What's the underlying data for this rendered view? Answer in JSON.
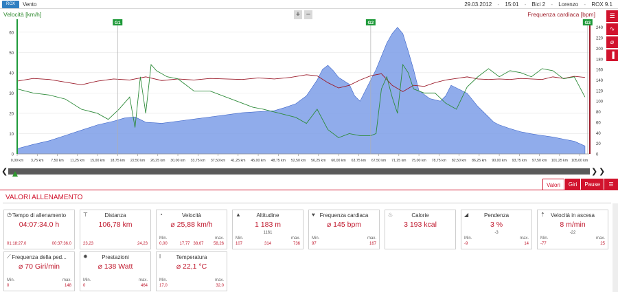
{
  "app": {
    "title": "Vento",
    "logo": "ROX",
    "date": "29.03.2012",
    "time": "15:01",
    "bike": "Bici 2",
    "user": "Lorenzo",
    "device": "ROX 9.1"
  },
  "chart": {
    "left_axis_title": "Velocità [km/h]",
    "right_axis_title": "Frequenza cardiaca [bpm]",
    "zoom_in": "+",
    "zoom_out": "−",
    "markers": [
      "G1",
      "G2",
      "G3"
    ],
    "colors": {
      "speed": "#2e8b3a",
      "heart": "#9b1b2a",
      "altitude_fill": "#7d9ee8",
      "altitude_line": "#3c64c8",
      "marker": "#1f9a3a"
    }
  },
  "chart_data": {
    "type": "line",
    "x_unit": "km",
    "x_ticks": [
      "0,00 km",
      "3,75 km",
      "7,50 km",
      "11,25 km",
      "15,00 km",
      "18,75 km",
      "22,50 km",
      "26,25 km",
      "30,00 km",
      "33,75 km",
      "37,50 km",
      "41,25 km",
      "45,00 km",
      "48,75 km",
      "52,50 km",
      "56,25 km",
      "60,00 km",
      "63,75 km",
      "67,50 km",
      "71,25 km",
      "75,00 km",
      "78,75 km",
      "82,50 km",
      "86,25 km",
      "90,00 km",
      "93,75 km",
      "97,50 km",
      "101,25 km",
      "105,00 km"
    ],
    "left_ticks": [
      "0",
      "10",
      "20",
      "30",
      "40",
      "50",
      "60"
    ],
    "right_ticks": [
      "0",
      "20",
      "40",
      "60",
      "80",
      "100",
      "120",
      "140",
      "160",
      "180",
      "200",
      "220",
      "240"
    ],
    "left_range": [
      0,
      65
    ],
    "right_range": [
      0,
      250
    ],
    "x_range": [
      0,
      106.78
    ],
    "marker_positions_km": [
      18.75,
      66.0,
      106.5
    ],
    "series": [
      {
        "name": "Velocità [km/h]",
        "axis": "left",
        "points": [
          [
            0,
            32
          ],
          [
            3,
            30
          ],
          [
            6,
            29
          ],
          [
            9,
            27
          ],
          [
            12,
            22
          ],
          [
            15,
            20
          ],
          [
            17,
            17
          ],
          [
            19,
            22
          ],
          [
            21,
            28
          ],
          [
            22,
            13
          ],
          [
            23,
            38
          ],
          [
            24,
            20
          ],
          [
            25,
            44
          ],
          [
            26,
            41
          ],
          [
            28,
            38
          ],
          [
            30,
            37
          ],
          [
            33,
            31
          ],
          [
            36,
            31
          ],
          [
            39,
            28
          ],
          [
            41,
            26
          ],
          [
            44,
            23
          ],
          [
            46,
            22
          ],
          [
            49,
            20
          ],
          [
            52,
            18
          ],
          [
            54,
            15
          ],
          [
            56,
            22
          ],
          [
            58,
            12
          ],
          [
            60,
            8
          ],
          [
            62,
            10
          ],
          [
            64,
            9
          ],
          [
            66,
            9
          ],
          [
            67,
            10
          ],
          [
            68,
            32
          ],
          [
            69,
            38
          ],
          [
            70,
            28
          ],
          [
            71,
            20
          ],
          [
            72,
            44
          ],
          [
            73,
            40
          ],
          [
            74,
            32
          ],
          [
            76,
            30
          ],
          [
            78,
            30
          ],
          [
            80,
            25
          ],
          [
            82,
            22
          ],
          [
            84,
            33
          ],
          [
            86,
            38
          ],
          [
            88,
            42
          ],
          [
            90,
            38
          ],
          [
            92,
            41
          ],
          [
            94,
            40
          ],
          [
            96,
            38
          ],
          [
            98,
            42
          ],
          [
            100,
            41
          ],
          [
            102,
            37
          ],
          [
            104,
            38
          ],
          [
            106,
            28
          ]
        ]
      },
      {
        "name": "Frequenza cardiaca [bpm]",
        "axis": "right",
        "points": [
          [
            0,
            138
          ],
          [
            3,
            143
          ],
          [
            6,
            141
          ],
          [
            9,
            136
          ],
          [
            12,
            131
          ],
          [
            15,
            138
          ],
          [
            18,
            142
          ],
          [
            21,
            140
          ],
          [
            24,
            146
          ],
          [
            27,
            139
          ],
          [
            30,
            142
          ],
          [
            33,
            140
          ],
          [
            36,
            143
          ],
          [
            39,
            142
          ],
          [
            42,
            141
          ],
          [
            45,
            144
          ],
          [
            48,
            142
          ],
          [
            51,
            145
          ],
          [
            54,
            150
          ],
          [
            56,
            148
          ],
          [
            58,
            135
          ],
          [
            60,
            125
          ],
          [
            62,
            130
          ],
          [
            64,
            140
          ],
          [
            66,
            148
          ],
          [
            68,
            152
          ],
          [
            70,
            130
          ],
          [
            72,
            118
          ],
          [
            74,
            130
          ],
          [
            76,
            128
          ],
          [
            78,
            135
          ],
          [
            80,
            140
          ],
          [
            82,
            143
          ],
          [
            84,
            146
          ],
          [
            86,
            142
          ],
          [
            88,
            141
          ],
          [
            90,
            142
          ],
          [
            92,
            141
          ],
          [
            94,
            143
          ],
          [
            96,
            142
          ],
          [
            98,
            141
          ],
          [
            100,
            146
          ],
          [
            102,
            143
          ],
          [
            104,
            147
          ],
          [
            106,
            145
          ]
        ]
      },
      {
        "name": "Altitudine",
        "axis": "right",
        "style": "area",
        "points": [
          [
            0,
            10
          ],
          [
            3,
            18
          ],
          [
            6,
            25
          ],
          [
            9,
            35
          ],
          [
            12,
            45
          ],
          [
            15,
            55
          ],
          [
            18,
            62
          ],
          [
            20,
            68
          ],
          [
            22,
            70
          ],
          [
            24,
            60
          ],
          [
            27,
            58
          ],
          [
            30,
            62
          ],
          [
            33,
            66
          ],
          [
            36,
            70
          ],
          [
            39,
            74
          ],
          [
            42,
            78
          ],
          [
            45,
            80
          ],
          [
            48,
            82
          ],
          [
            50,
            88
          ],
          [
            52,
            95
          ],
          [
            54,
            110
          ],
          [
            55,
            125
          ],
          [
            56,
            140
          ],
          [
            57,
            160
          ],
          [
            58,
            168
          ],
          [
            59,
            158
          ],
          [
            60,
            145
          ],
          [
            62,
            132
          ],
          [
            63,
            110
          ],
          [
            64,
            100
          ],
          [
            65,
            120
          ],
          [
            66,
            140
          ],
          [
            67,
            160
          ],
          [
            68,
            185
          ],
          [
            69,
            210
          ],
          [
            70,
            228
          ],
          [
            71,
            240
          ],
          [
            72,
            228
          ],
          [
            73,
            195
          ],
          [
            74,
            160
          ],
          [
            75,
            120
          ],
          [
            77,
            105
          ],
          [
            79,
            100
          ],
          [
            80,
            110
          ],
          [
            81,
            130
          ],
          [
            82,
            125
          ],
          [
            84,
            115
          ],
          [
            86,
            90
          ],
          [
            88,
            70
          ],
          [
            89,
            60
          ],
          [
            90,
            55
          ],
          [
            92,
            48
          ],
          [
            94,
            42
          ],
          [
            96,
            38
          ],
          [
            98,
            35
          ],
          [
            100,
            32
          ],
          [
            102,
            28
          ],
          [
            104,
            24
          ],
          [
            106,
            15
          ]
        ]
      }
    ]
  },
  "timeline": {
    "left_arrow": "❮",
    "right_arrow": "❯"
  },
  "tabs": [
    {
      "label": "Valori",
      "active": true
    },
    {
      "label": "Giri",
      "active": false
    },
    {
      "label": "Pause",
      "active": false
    }
  ],
  "section_title": "VALORI ALLENAMENTO",
  "cards": [
    {
      "label": "Tempo di allenamento",
      "value": "04:07:34.0 h",
      "min": "01:18:27.0",
      "max": "00:37:36.0",
      "min_label": "",
      "max_label": ""
    },
    {
      "label": "Distanza",
      "value": "106,78 km",
      "min": "23,23",
      "max": "24,23",
      "min_label": "",
      "max_label": ""
    },
    {
      "label": "Velocità",
      "value": "⌀ 25,88 km/h",
      "min_label": "Min.",
      "max_label": "max.",
      "min": "0,00",
      "max": "58,26",
      "mid1": "17,77",
      "mid2": "38,67"
    },
    {
      "label": "Altitudine",
      "value": "1 183 m",
      "sub": "1161",
      "min_label": "Min.",
      "max_label": "max.",
      "min": "107",
      "mid": "314",
      "max": "736"
    },
    {
      "label": "Frequenza cardiaca",
      "value": "⌀ 145 bpm",
      "min_label": "Min.",
      "max_label": "max.",
      "min": "97",
      "max": "167"
    },
    {
      "label": "Calorie",
      "value": "3 193 kcal"
    },
    {
      "label": "Pendenza",
      "value": "3 %",
      "sub": "-3",
      "min_label": "Min.",
      "max_label": "max.",
      "min": "-9",
      "max": "14"
    },
    {
      "label": "Velocità in ascesa",
      "value": "8 m/min",
      "sub": "-22",
      "min_label": "Min.",
      "max_label": "max.",
      "min": "-77",
      "max": "25"
    },
    {
      "label": "Frequenza della ped...",
      "value": "⌀ 70 Giri/min",
      "min_label": "Min.",
      "max_label": "max.",
      "min": "0",
      "max": "148"
    },
    {
      "label": "Prestazioni",
      "value": "⌀ 138 Watt",
      "min_label": "Min.",
      "max_label": "max.",
      "min": "0",
      "max": "464"
    },
    {
      "label": "Temperatura",
      "value": "⌀ 22,1 °C",
      "min_label": "Min.",
      "max_label": "max.",
      "min": "17,0",
      "max": "32,0"
    }
  ]
}
